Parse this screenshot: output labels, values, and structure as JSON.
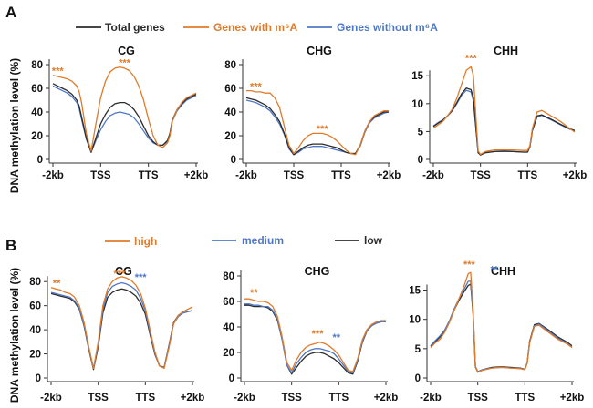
{
  "colors": {
    "black": "#2b2b2b",
    "orange": "#e07b2a",
    "blue": "#4f78c4"
  },
  "figure": {
    "panel_a_label": "A",
    "panel_b_label": "B",
    "ylabel": "DNA methylation level (%)",
    "legend_a": [
      {
        "label": "Total genes",
        "color_key": "black"
      },
      {
        "label": "Genes with m⁶A",
        "color_key": "orange"
      },
      {
        "label": "Genes without m⁶A",
        "color_key": "blue"
      }
    ],
    "legend_b": [
      {
        "label": "high",
        "color_key": "orange"
      },
      {
        "label": "medium",
        "color_key": "blue"
      },
      {
        "label": "low",
        "color_key": "black"
      }
    ]
  },
  "chart_data": [
    {
      "type": "line",
      "panel": "A",
      "title": "CG",
      "xlabel": "",
      "ylabel": "DNA methylation level (%)",
      "ylim": [
        0,
        80
      ],
      "yticks": [
        0,
        20,
        40,
        60,
        80
      ],
      "xticks": [
        "-2kb",
        "TSS",
        "TTS",
        "+2kb"
      ],
      "x": [
        0,
        0.1,
        0.2,
        0.3,
        0.4,
        0.5,
        0.55,
        0.6,
        0.7,
        0.8,
        0.9,
        1.0,
        1.1,
        1.2,
        1.3,
        1.4,
        1.5,
        1.6,
        1.7,
        1.8,
        1.9,
        2.0,
        2.1,
        2.2,
        2.3,
        2.4,
        2.45,
        2.5,
        2.6,
        2.7,
        2.8,
        2.9,
        3.0
      ],
      "series": [
        {
          "name": "Genes with m⁶A",
          "color_key": "orange",
          "values": [
            71,
            70,
            69,
            68,
            66,
            62,
            57,
            48,
            22,
            7,
            30,
            52,
            66,
            74,
            77,
            78,
            77,
            75,
            70,
            62,
            50,
            34,
            20,
            12,
            10,
            14,
            20,
            32,
            42,
            48,
            52,
            54,
            56
          ]
        },
        {
          "name": "Total genes",
          "color_key": "black",
          "values": [
            64,
            62,
            60,
            58,
            55,
            50,
            45,
            36,
            18,
            6,
            18,
            30,
            38,
            44,
            47,
            48,
            48,
            46,
            42,
            36,
            28,
            20,
            15,
            12,
            12,
            16,
            22,
            33,
            42,
            47,
            51,
            53,
            55
          ]
        },
        {
          "name": "Genes without m⁶A",
          "color_key": "blue",
          "values": [
            62,
            60,
            58,
            56,
            53,
            48,
            43,
            34,
            17,
            6,
            16,
            25,
            32,
            37,
            39,
            40,
            39,
            38,
            35,
            30,
            24,
            18,
            14,
            12,
            12,
            15,
            21,
            32,
            41,
            46,
            50,
            52,
            54
          ]
        }
      ],
      "annotations": [
        {
          "text": "***",
          "x": 0.1,
          "y": 75,
          "color_key": "orange"
        },
        {
          "text": "***",
          "x": 1.5,
          "y": 82,
          "color_key": "orange"
        }
      ]
    },
    {
      "type": "line",
      "panel": "A",
      "title": "CHG",
      "ylim": [
        0,
        80
      ],
      "yticks": [
        0,
        20,
        40,
        60,
        80
      ],
      "xticks": [
        "-2kb",
        "TSS",
        "TTS",
        "+2kb"
      ],
      "x": [
        0,
        0.1,
        0.2,
        0.3,
        0.4,
        0.5,
        0.6,
        0.7,
        0.8,
        0.9,
        1.0,
        1.1,
        1.2,
        1.3,
        1.4,
        1.5,
        1.6,
        1.7,
        1.8,
        1.9,
        2.0,
        2.1,
        2.2,
        2.3,
        2.4,
        2.5,
        2.6,
        2.7,
        2.8,
        2.9,
        3.0
      ],
      "series": [
        {
          "name": "Genes with m⁶A",
          "color_key": "orange",
          "values": [
            58,
            58,
            57,
            57,
            56,
            56,
            52,
            44,
            28,
            12,
            5,
            10,
            16,
            20,
            22,
            22,
            22,
            21,
            19,
            16,
            12,
            8,
            5,
            4,
            12,
            24,
            32,
            37,
            39,
            41,
            41
          ]
        },
        {
          "name": "Total genes",
          "color_key": "black",
          "values": [
            52,
            51,
            50,
            48,
            46,
            43,
            38,
            32,
            22,
            10,
            4,
            7,
            10,
            12,
            13,
            13,
            13,
            12,
            11,
            10,
            8,
            6,
            5,
            5,
            12,
            24,
            32,
            36,
            38,
            40,
            40
          ]
        },
        {
          "name": "Genes without m⁶A",
          "color_key": "blue",
          "values": [
            50,
            49,
            48,
            46,
            44,
            41,
            36,
            30,
            21,
            9,
            4,
            6,
            9,
            10,
            11,
            11,
            11,
            10,
            9,
            8,
            7,
            6,
            5,
            5,
            11,
            23,
            31,
            35,
            37,
            39,
            40
          ]
        }
      ],
      "annotations": [
        {
          "text": "***",
          "x": 0.2,
          "y": 62,
          "color_key": "orange"
        },
        {
          "text": "***",
          "x": 1.6,
          "y": 26,
          "color_key": "orange"
        }
      ]
    },
    {
      "type": "line",
      "panel": "A",
      "title": "CHH",
      "ylim": [
        0,
        17
      ],
      "yticks": [
        0,
        5,
        10,
        15
      ],
      "xticks": [
        "-2kb",
        "TSS",
        "TTS",
        "+2kb"
      ],
      "x": [
        0,
        0.1,
        0.2,
        0.3,
        0.4,
        0.5,
        0.6,
        0.7,
        0.8,
        0.85,
        0.9,
        0.95,
        1.0,
        1.1,
        1.3,
        1.5,
        1.7,
        1.9,
        2.0,
        2.05,
        2.1,
        2.2,
        2.3,
        2.5,
        2.7,
        2.9,
        3.0
      ],
      "series": [
        {
          "name": "Genes with m⁶A",
          "color_key": "orange",
          "values": [
            5.6,
            6.2,
            6.8,
            7.8,
            9.0,
            11.0,
            13.5,
            16.0,
            16.6,
            15.0,
            8.0,
            1.5,
            0.9,
            1.4,
            1.7,
            1.7,
            1.7,
            1.6,
            1.6,
            2.5,
            5.5,
            8.5,
            8.8,
            7.8,
            6.8,
            5.5,
            4.9
          ]
        },
        {
          "name": "Total genes",
          "color_key": "black",
          "values": [
            5.9,
            6.5,
            7.0,
            7.8,
            8.8,
            10.2,
            11.8,
            12.8,
            12.5,
            11.0,
            6.0,
            1.2,
            0.8,
            1.2,
            1.4,
            1.5,
            1.4,
            1.3,
            1.3,
            2.3,
            5.2,
            7.8,
            8.0,
            7.2,
            6.3,
            5.5,
            5.2
          ]
        },
        {
          "name": "Genes without m⁶A",
          "color_key": "blue",
          "values": [
            6.0,
            6.6,
            7.1,
            7.8,
            8.7,
            10.0,
            11.5,
            12.4,
            12.1,
            10.5,
            5.8,
            1.2,
            0.8,
            1.2,
            1.4,
            1.4,
            1.4,
            1.3,
            1.3,
            2.3,
            5.1,
            7.6,
            7.9,
            7.1,
            6.2,
            5.4,
            5.2
          ]
        }
      ],
      "annotations": [
        {
          "text": "***",
          "x": 0.8,
          "y": 18.2,
          "color_key": "orange"
        }
      ]
    },
    {
      "type": "line",
      "panel": "B",
      "title": "CG",
      "ylim": [
        0,
        90
      ],
      "yticks": [
        0,
        20,
        40,
        60,
        80
      ],
      "xticks": [
        "-2kb",
        "TSS",
        "TTS",
        "+2kb"
      ],
      "x": [
        0,
        0.1,
        0.2,
        0.3,
        0.4,
        0.5,
        0.6,
        0.7,
        0.8,
        0.9,
        1.0,
        1.1,
        1.2,
        1.3,
        1.4,
        1.5,
        1.6,
        1.7,
        1.8,
        1.9,
        2.0,
        2.1,
        2.2,
        2.3,
        2.4,
        2.5,
        2.6,
        2.7,
        2.8,
        2.9,
        3.0
      ],
      "series": [
        {
          "name": "high",
          "color_key": "orange",
          "values": [
            75,
            74,
            73,
            71,
            70,
            67,
            60,
            46,
            26,
            8,
            30,
            60,
            74,
            80,
            83,
            84,
            83,
            81,
            77,
            70,
            58,
            40,
            22,
            10,
            8,
            25,
            45,
            52,
            55,
            57,
            59
          ]
        },
        {
          "name": "medium",
          "color_key": "blue",
          "values": [
            71,
            70,
            69,
            68,
            67,
            64,
            58,
            44,
            25,
            8,
            28,
            57,
            71,
            76,
            78,
            79,
            78,
            76,
            73,
            66,
            56,
            38,
            21,
            10,
            9,
            26,
            45,
            51,
            54,
            55,
            56
          ]
        },
        {
          "name": "low",
          "color_key": "black",
          "values": [
            70,
            69,
            68,
            67,
            66,
            63,
            57,
            43,
            24,
            7,
            26,
            54,
            67,
            71,
            73,
            74,
            73,
            71,
            68,
            62,
            53,
            36,
            20,
            10,
            9,
            27,
            46,
            52,
            54,
            55,
            56
          ]
        }
      ],
      "annotations": [
        {
          "text": "**",
          "x": 0.12,
          "y": 79,
          "color_key": "orange"
        },
        {
          "text": "***",
          "x": 1.45,
          "y": 87,
          "color_key": "orange"
        },
        {
          "text": "***",
          "x": 1.9,
          "y": 84,
          "color_key": "blue"
        }
      ]
    },
    {
      "type": "line",
      "panel": "B",
      "title": "CHG",
      "ylim": [
        0,
        85
      ],
      "yticks": [
        0,
        20,
        40,
        60,
        80
      ],
      "xticks": [
        "-2kb",
        "TSS",
        "TTS",
        "+2kb"
      ],
      "x": [
        0,
        0.1,
        0.2,
        0.3,
        0.4,
        0.5,
        0.6,
        0.7,
        0.8,
        0.9,
        1.0,
        1.1,
        1.2,
        1.3,
        1.4,
        1.5,
        1.6,
        1.7,
        1.8,
        1.9,
        2.0,
        2.1,
        2.2,
        2.3,
        2.4,
        2.5,
        2.6,
        2.7,
        2.8,
        2.9,
        3.0
      ],
      "series": [
        {
          "name": "high",
          "color_key": "orange",
          "values": [
            62,
            62,
            61,
            60,
            60,
            59,
            56,
            48,
            32,
            12,
            6,
            14,
            20,
            24,
            26,
            27,
            28,
            27,
            25,
            22,
            18,
            12,
            6,
            5,
            15,
            30,
            38,
            42,
            44,
            45,
            45
          ]
        },
        {
          "name": "medium",
          "color_key": "blue",
          "values": [
            58,
            58,
            57,
            57,
            56,
            56,
            53,
            46,
            30,
            10,
            4,
            11,
            16,
            20,
            22,
            23,
            23,
            22,
            21,
            19,
            15,
            10,
            5,
            4,
            14,
            29,
            37,
            41,
            43,
            44,
            44
          ]
        },
        {
          "name": "low",
          "color_key": "black",
          "values": [
            57,
            57,
            56,
            56,
            56,
            55,
            52,
            45,
            30,
            10,
            3,
            8,
            13,
            17,
            19,
            20,
            20,
            19,
            17,
            15,
            12,
            8,
            4,
            3,
            13,
            28,
            37,
            41,
            43,
            44,
            45
          ]
        }
      ],
      "annotations": [
        {
          "text": "**",
          "x": 0.2,
          "y": 67,
          "color_key": "orange"
        },
        {
          "text": "***",
          "x": 1.55,
          "y": 35,
          "color_key": "orange"
        },
        {
          "text": "**",
          "x": 1.95,
          "y": 32,
          "color_key": "blue"
        }
      ]
    },
    {
      "type": "line",
      "panel": "B",
      "title": "CHH",
      "ylim": [
        0,
        18.5
      ],
      "yticks": [
        0,
        5,
        10,
        15
      ],
      "xticks": [
        "-2kb",
        "TSS",
        "TTS",
        "+2kb"
      ],
      "x": [
        0,
        0.1,
        0.2,
        0.3,
        0.4,
        0.5,
        0.6,
        0.7,
        0.8,
        0.85,
        0.9,
        0.95,
        1.0,
        1.1,
        1.3,
        1.5,
        1.7,
        1.9,
        2.0,
        2.05,
        2.1,
        2.2,
        2.3,
        2.5,
        2.7,
        2.9,
        3.0
      ],
      "series": [
        {
          "name": "high",
          "color_key": "orange",
          "values": [
            5.2,
            6.0,
            6.6,
            7.8,
            9.5,
            11.5,
            13.5,
            15.5,
            17.8,
            18.0,
            12.0,
            2.0,
            1.0,
            1.3,
            1.7,
            1.8,
            1.7,
            1.6,
            1.4,
            2.5,
            6.0,
            8.8,
            9.0,
            7.8,
            6.6,
            5.8,
            5.2
          ]
        },
        {
          "name": "medium",
          "color_key": "blue",
          "values": [
            5.5,
            6.4,
            7.2,
            8.2,
            9.8,
            11.8,
            13.5,
            15.0,
            16.5,
            16.5,
            11.5,
            2.0,
            1.1,
            1.4,
            1.7,
            1.8,
            1.7,
            1.6,
            1.5,
            2.6,
            6.0,
            8.9,
            9.2,
            8.0,
            6.8,
            5.9,
            5.3
          ]
        },
        {
          "name": "low",
          "color_key": "black",
          "values": [
            5.4,
            6.2,
            7.0,
            8.0,
            9.6,
            11.6,
            13.2,
            14.6,
            15.8,
            16.0,
            11.0,
            1.9,
            1.0,
            1.4,
            1.8,
            1.9,
            1.8,
            1.7,
            1.5,
            2.6,
            6.2,
            9.1,
            9.3,
            8.2,
            7.0,
            6.1,
            5.5
          ]
        }
      ],
      "annotations": [
        {
          "text": "***",
          "x": 0.82,
          "y": 19.4,
          "color_key": "orange"
        },
        {
          "text": "**",
          "x": 1.35,
          "y": 18.6,
          "color_key": "blue"
        }
      ]
    }
  ]
}
